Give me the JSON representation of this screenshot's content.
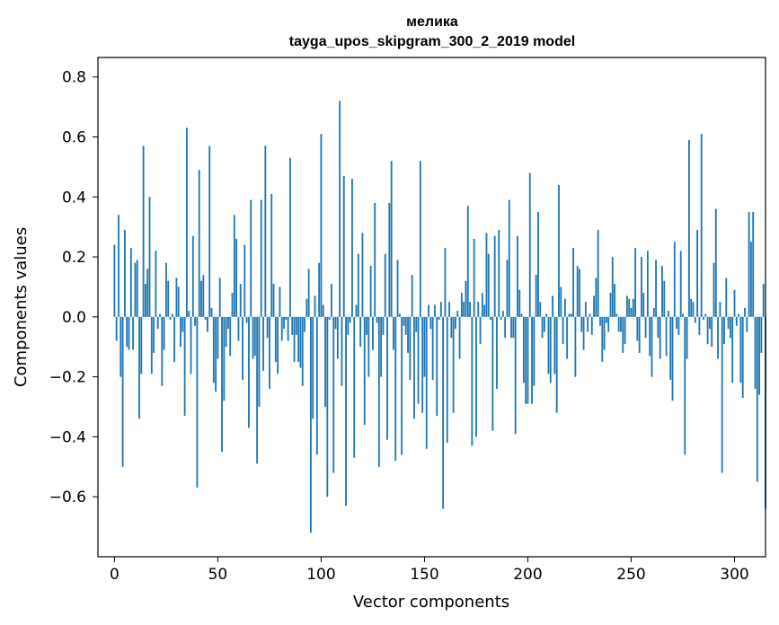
{
  "chart_data": {
    "type": "bar",
    "title": "мелика",
    "subtitle": "tayga_upos_skipgram_300_2_2019 model",
    "xlabel": "Vector components",
    "ylabel": "Components values",
    "xlim": [
      -8,
      315
    ],
    "ylim": [
      -0.8,
      0.865
    ],
    "xticks": [
      0,
      50,
      100,
      150,
      200,
      250,
      300
    ],
    "yticks": [
      -0.6,
      -0.4,
      -0.2,
      0.0,
      0.2,
      0.4,
      0.6,
      0.8
    ],
    "ytick_labels": [
      "−0.6",
      "−0.4",
      "−0.2",
      "0.0",
      "0.2",
      "0.4",
      "0.6",
      "0.8"
    ],
    "grid": false,
    "bar_color": "#1f77b4",
    "values": [
      0.24,
      -0.08,
      0.34,
      -0.2,
      -0.5,
      0.29,
      -0.1,
      -0.11,
      0.23,
      -0.11,
      0.18,
      0.19,
      -0.34,
      -0.19,
      0.57,
      0.11,
      0.16,
      0.4,
      -0.19,
      -0.12,
      0.22,
      -0.04,
      0.01,
      -0.23,
      -0.11,
      0.18,
      0.12,
      -0.01,
      0.01,
      -0.15,
      0.13,
      0.1,
      -0.1,
      -0.05,
      -0.33,
      0.63,
      0.02,
      -0.19,
      0.27,
      -0.03,
      -0.57,
      0.49,
      0.12,
      0.14,
      -0.01,
      -0.05,
      0.57,
      0.03,
      -0.22,
      -0.25,
      -0.14,
      0.13,
      -0.45,
      -0.28,
      -0.1,
      -0.04,
      -0.13,
      0.08,
      0.34,
      0.26,
      -0.08,
      0.11,
      -0.21,
      0.24,
      -0.02,
      -0.37,
      0.39,
      -0.14,
      -0.13,
      -0.49,
      -0.3,
      0.39,
      -0.18,
      0.57,
      -0.07,
      -0.24,
      0.41,
      0.11,
      -0.15,
      -0.19,
      0.1,
      -0.08,
      -0.04,
      -0.01,
      -0.08,
      0.53,
      -0.06,
      -0.15,
      -0.06,
      -0.15,
      -0.17,
      -0.23,
      -0.05,
      0.06,
      0.16,
      -0.72,
      -0.34,
      0.07,
      -0.46,
      0.18,
      0.61,
      0.04,
      -0.3,
      -0.6,
      -0.01,
      0.11,
      -0.52,
      -0.04,
      -0.14,
      0.72,
      -0.23,
      0.47,
      -0.63,
      -0.06,
      -0.02,
      0.46,
      -0.47,
      0.04,
      0.21,
      -0.1,
      0.28,
      -0.36,
      -0.06,
      -0.2,
      0.17,
      -0.11,
      0.38,
      -0.02,
      -0.5,
      -0.2,
      -0.06,
      0.21,
      -0.41,
      0.38,
      0.52,
      -0.11,
      -0.48,
      0.19,
      0.01,
      -0.46,
      -0.03,
      -0.06,
      -0.12,
      -0.21,
      0.14,
      -0.34,
      -0.05,
      -0.29,
      0.52,
      -0.32,
      -0.2,
      -0.44,
      0.04,
      -0.04,
      -0.21,
      0.04,
      -0.33,
      -0.01,
      0.05,
      -0.64,
      0.23,
      -0.42,
      0.05,
      -0.07,
      -0.32,
      -0.04,
      0.02,
      -0.14,
      0.08,
      0.05,
      0.12,
      0.37,
      0.05,
      -0.43,
      0.26,
      -0.4,
      0.05,
      -0.09,
      0.08,
      0.04,
      0.28,
      0.21,
      -0.01,
      -0.38,
      0.27,
      -0.24,
      0.29,
      -0.01,
      0.02,
      -0.07,
      0.19,
      0.39,
      -0.07,
      -0.07,
      -0.39,
      0.27,
      0.09,
      0.01,
      -0.22,
      -0.29,
      -0.29,
      0.48,
      -0.29,
      -0.23,
      0.14,
      0.35,
      0.05,
      -0.07,
      -0.05,
      0.01,
      -0.19,
      -0.22,
      0.07,
      -0.19,
      -0.32,
      0.44,
      0.1,
      -0.09,
      0.06,
      -0.14,
      0.01,
      0.01,
      0.23,
      -0.2,
      0.17,
      0.16,
      -0.05,
      -0.11,
      0.05,
      -0.05,
      0.01,
      -0.06,
      0.07,
      0.13,
      0.29,
      -0.03,
      -0.15,
      -0.11,
      -0.02,
      -0.05,
      0.08,
      0.2,
      0.11,
      0.01,
      -0.05,
      -0.05,
      -0.12,
      -0.09,
      0.07,
      0.06,
      0.03,
      0.06,
      0.23,
      -0.08,
      -0.12,
      0.2,
      0.08,
      -0.07,
      0.22,
      -0.13,
      -0.2,
      0.03,
      0.19,
      -0.07,
      -0.14,
      0.17,
      0.12,
      -0.13,
      0.02,
      -0.21,
      -0.28,
      0.25,
      -0.04,
      -0.06,
      0.22,
      0.01,
      -0.46,
      -0.14,
      0.59,
      0.06,
      0.05,
      -0.02,
      0.29,
      -0.06,
      0.61,
      -0.01,
      0.01,
      -0.09,
      -0.04,
      -0.1,
      0.18,
      0.36,
      -0.14,
      0.05,
      -0.52,
      -0.09,
      0.13,
      -0.04,
      -0.07,
      -0.22,
      0.09,
      -0.03,
      0.01,
      -0.22,
      -0.27,
      0.03,
      -0.05,
      0.35,
      0.25,
      0.35,
      -0.24,
      -0.55,
      -0.26,
      -0.12,
      0.11,
      -0.64
    ]
  }
}
